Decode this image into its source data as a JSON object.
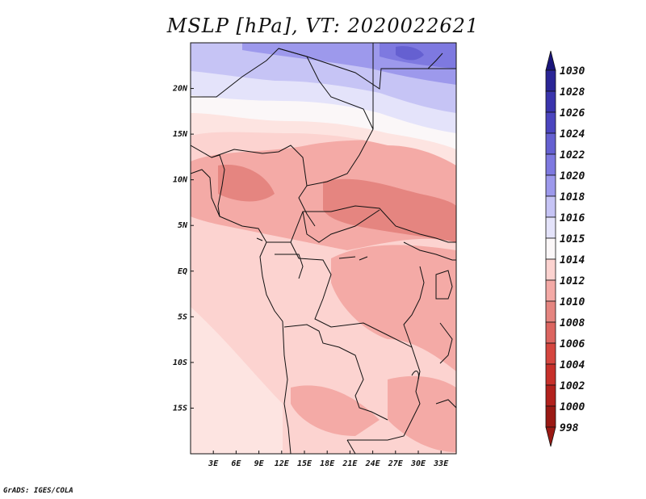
{
  "title": "MSLP [hPa], VT: 2020022621",
  "credit": "GrADS: IGES/COLA",
  "map": {
    "region": "Central Africa",
    "lon_range": [
      0,
      35
    ],
    "lat_range": [
      -20,
      25
    ],
    "lon_ticks": [
      "3E",
      "6E",
      "9E",
      "12E",
      "15E",
      "18E",
      "21E",
      "24E",
      "27E",
      "30E",
      "33E"
    ],
    "lat_ticks": [
      "20N",
      "15N",
      "10N",
      "5N",
      "EQ",
      "5S",
      "10S",
      "15S"
    ]
  },
  "colorbar": {
    "labels": [
      "1030",
      "1028",
      "1026",
      "1024",
      "1022",
      "1020",
      "1018",
      "1016",
      "1015",
      "1014",
      "1012",
      "1010",
      "1008",
      "1006",
      "1004",
      "1002",
      "1000",
      "998"
    ],
    "colors": [
      "#1a157a",
      "#2a2596",
      "#3a34ad",
      "#4b45bf",
      "#6560d1",
      "#7e79e0",
      "#9d99ec",
      "#c6c4f5",
      "#e4e3fa",
      "#fbf7f8",
      "#fcd3d0",
      "#f4aaa6",
      "#e58580",
      "#dc6560",
      "#d5463f",
      "#c7302a",
      "#b2211d",
      "#9a1914"
    ]
  }
}
